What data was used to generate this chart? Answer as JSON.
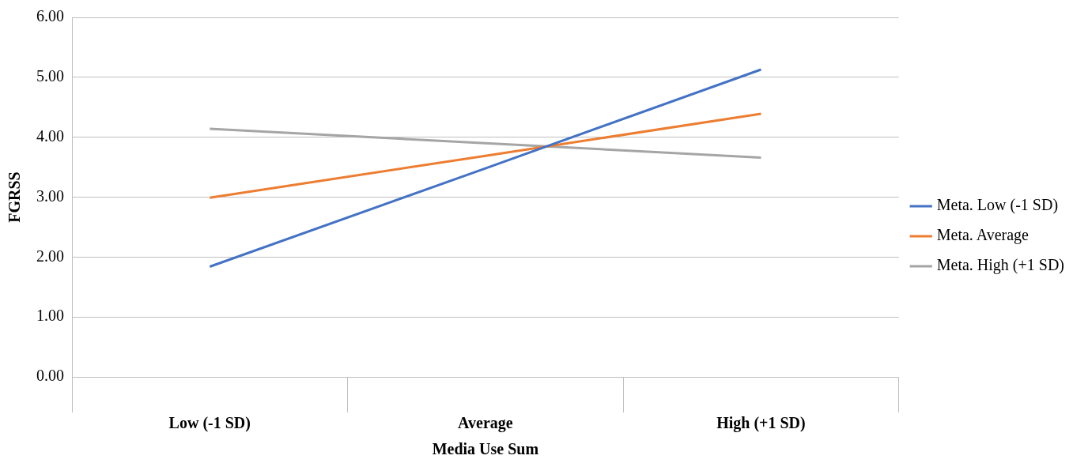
{
  "chart_data": {
    "type": "line",
    "xlabel": "Media Use Sum",
    "ylabel": "FGRSS",
    "categories": [
      "Low (-1 SD)",
      "Average",
      "High (+1 SD)"
    ],
    "series": [
      {
        "name": "Meta. Low (-1 SD)",
        "color": "#4472c4",
        "values": [
          1.84,
          3.48,
          5.13
        ]
      },
      {
        "name": "Meta. Average",
        "color": "#ed7d31",
        "values": [
          2.99,
          3.69,
          4.39
        ]
      },
      {
        "name": "Meta. High (+1 SD)",
        "color": "#a5a5a5",
        "values": [
          4.14,
          3.9,
          3.66
        ]
      }
    ],
    "ylim": [
      0,
      6
    ],
    "yticks": [
      {
        "value": 0,
        "label": "0.00"
      },
      {
        "value": 1,
        "label": "1.00"
      },
      {
        "value": 2,
        "label": "2.00"
      },
      {
        "value": 3,
        "label": "3.00"
      },
      {
        "value": 4,
        "label": "4.00"
      },
      {
        "value": 5,
        "label": "5.00"
      },
      {
        "value": 6,
        "label": "6.00"
      }
    ],
    "grid": "y",
    "legend": "right",
    "marker": "none",
    "line_style": "solid"
  }
}
